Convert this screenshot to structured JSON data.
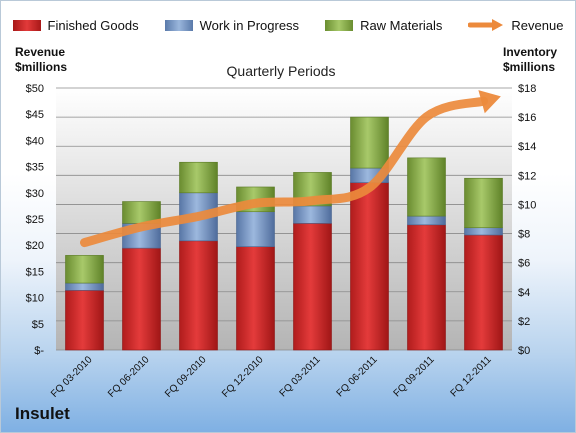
{
  "brand": "Insulet",
  "legend": {
    "finished": "Finished Goods",
    "wip": "Work in Progress",
    "raw": "Raw Materials",
    "revenue": "Revenue"
  },
  "y_left_title": [
    "Revenue",
    "$millions"
  ],
  "y_right_title": [
    "Inventory",
    "$millions"
  ],
  "colors": {
    "finished": "#d62a2a",
    "wip": "#7a9ac6",
    "raw": "#8ab04a",
    "revenue": "#ec8a3c"
  },
  "chart_data": {
    "type": "bar",
    "title": "Quarterly Periods",
    "categories": [
      "FQ 03-2010",
      "FQ 06-2010",
      "FQ 09-2010",
      "FQ 12-2010",
      "FQ 03-2011",
      "FQ 06-2011",
      "FQ 09-2011",
      "FQ 12-2011"
    ],
    "series": [
      {
        "name": "Finished Goods",
        "axis": "right",
        "stack": "inventory",
        "values": [
          4.1,
          7.0,
          7.5,
          7.1,
          8.7,
          11.5,
          8.6,
          7.9
        ]
      },
      {
        "name": "Work in Progress",
        "axis": "right",
        "stack": "inventory",
        "values": [
          0.5,
          1.7,
          3.3,
          2.4,
          1.2,
          1.0,
          0.6,
          0.5
        ]
      },
      {
        "name": "Raw Materials",
        "axis": "right",
        "stack": "inventory",
        "values": [
          1.9,
          1.5,
          2.1,
          1.7,
          2.3,
          3.5,
          4.0,
          3.4
        ]
      },
      {
        "name": "Revenue",
        "type": "line",
        "axis": "left",
        "values": [
          20.5,
          23.5,
          25.5,
          28.0,
          28.5,
          31.0,
          44.5,
          47.5
        ]
      }
    ],
    "y_left": {
      "min": 0,
      "max": 50,
      "step": 5,
      "ticks": [
        "$-",
        "$5",
        "$10",
        "$15",
        "$20",
        "$25",
        "$30",
        "$35",
        "$40",
        "$45",
        "$50"
      ]
    },
    "y_right": {
      "min": 0,
      "max": 18,
      "step": 2,
      "ticks": [
        "$0",
        "$2",
        "$4",
        "$6",
        "$8",
        "$10",
        "$12",
        "$14",
        "$16",
        "$18"
      ]
    },
    "grid": true,
    "legend_position": "top"
  }
}
